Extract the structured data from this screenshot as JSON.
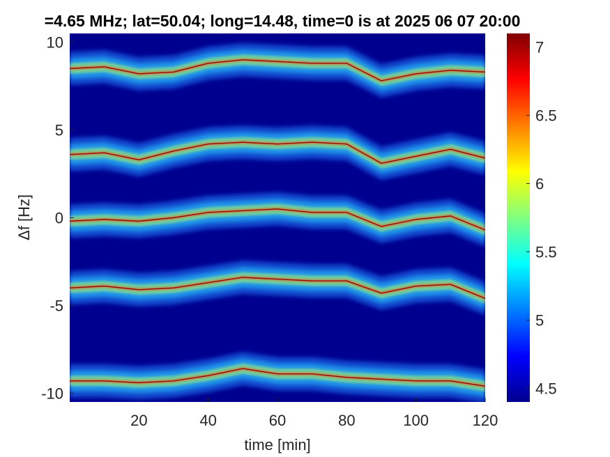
{
  "chart_data": {
    "type": "heatmap",
    "title": "=4.65 MHz;  lat=50.04; long=14.48, time=0 is at 2025 06 07 20:00",
    "xlabel": "time [min]",
    "ylabel": "Δf [Hz]",
    "xlim": [
      0,
      120
    ],
    "ylim": [
      -10.5,
      10.5
    ],
    "x_ticks": [
      20,
      40,
      60,
      80,
      100,
      120
    ],
    "x_tick_labels": [
      "20",
      "40",
      "60",
      "80",
      "100",
      "120"
    ],
    "y_ticks": [
      10,
      5,
      0,
      -5,
      -10
    ],
    "y_tick_labels": [
      "10",
      "5",
      "0",
      "-5",
      "-10"
    ],
    "colorbar": {
      "range": [
        4.4,
        7.1
      ],
      "ticks": [
        7,
        6.5,
        6,
        5.5,
        5,
        4.5
      ],
      "tick_labels": [
        "7",
        "6.5",
        "6",
        "5.5",
        "5",
        "4.5"
      ],
      "colormap": "jet"
    },
    "background_color": "#00008f",
    "series": [
      {
        "points": [
          [
            0,
            8.5
          ],
          [
            10,
            8.6
          ],
          [
            20,
            8.2
          ],
          [
            30,
            8.3
          ],
          [
            40,
            8.8
          ],
          [
            50,
            9.0
          ],
          [
            60,
            8.9
          ],
          [
            70,
            8.8
          ],
          [
            80,
            8.8
          ],
          [
            90,
            7.8
          ],
          [
            100,
            8.2
          ],
          [
            110,
            8.4
          ],
          [
            120,
            8.3
          ]
        ]
      },
      {
        "points": [
          [
            0,
            3.6
          ],
          [
            10,
            3.7
          ],
          [
            20,
            3.3
          ],
          [
            30,
            3.8
          ],
          [
            40,
            4.2
          ],
          [
            50,
            4.3
          ],
          [
            60,
            4.2
          ],
          [
            70,
            4.3
          ],
          [
            80,
            4.2
          ],
          [
            90,
            3.1
          ],
          [
            100,
            3.5
          ],
          [
            110,
            3.9
          ],
          [
            120,
            3.4
          ]
        ]
      },
      {
        "points": [
          [
            0,
            -0.2
          ],
          [
            10,
            -0.1
          ],
          [
            20,
            -0.2
          ],
          [
            30,
            0.0
          ],
          [
            40,
            0.3
          ],
          [
            50,
            0.4
          ],
          [
            60,
            0.5
          ],
          [
            70,
            0.3
          ],
          [
            80,
            0.3
          ],
          [
            90,
            -0.5
          ],
          [
            100,
            -0.1
          ],
          [
            110,
            0.1
          ],
          [
            120,
            -0.7
          ]
        ]
      },
      {
        "points": [
          [
            0,
            -4.0
          ],
          [
            10,
            -3.9
          ],
          [
            20,
            -4.1
          ],
          [
            30,
            -4.0
          ],
          [
            40,
            -3.7
          ],
          [
            50,
            -3.4
          ],
          [
            60,
            -3.5
          ],
          [
            70,
            -3.6
          ],
          [
            80,
            -3.6
          ],
          [
            90,
            -4.3
          ],
          [
            100,
            -3.9
          ],
          [
            110,
            -3.8
          ],
          [
            120,
            -4.6
          ]
        ]
      },
      {
        "points": [
          [
            0,
            -9.3
          ],
          [
            10,
            -9.3
          ],
          [
            20,
            -9.4
          ],
          [
            30,
            -9.3
          ],
          [
            40,
            -9.0
          ],
          [
            50,
            -8.6
          ],
          [
            60,
            -8.9
          ],
          [
            70,
            -8.9
          ],
          [
            80,
            -9.1
          ],
          [
            90,
            -9.2
          ],
          [
            100,
            -9.3
          ],
          [
            110,
            -9.3
          ],
          [
            120,
            -9.6
          ]
        ]
      }
    ]
  }
}
